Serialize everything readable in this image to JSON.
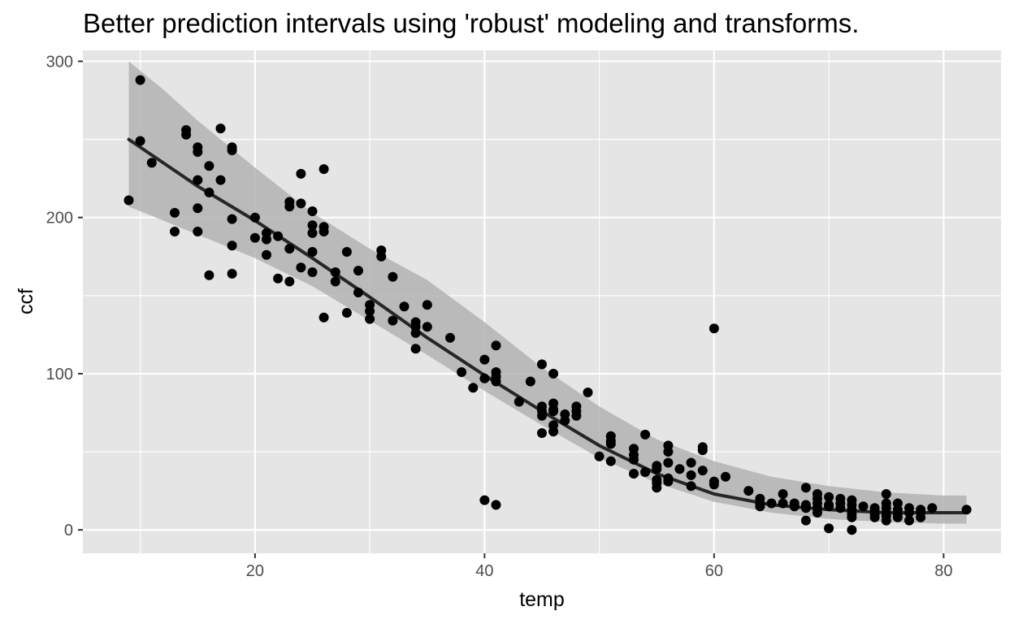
{
  "chart_data": {
    "type": "scatter",
    "title": "Better prediction intervals using 'robust' modeling and transforms.",
    "xlabel": "temp",
    "ylabel": "ccf",
    "xlim": [
      5,
      85
    ],
    "ylim": [
      -15,
      307
    ],
    "x_ticks": [
      20,
      40,
      60,
      80
    ],
    "x_tick_labels": [
      "20",
      "40",
      "60",
      "80"
    ],
    "y_ticks": [
      0,
      100,
      200,
      300
    ],
    "y_tick_labels": [
      "0",
      "100",
      "200",
      "300"
    ],
    "grid": true,
    "legend": "none",
    "colors": {
      "panel_background": "#e5e5e5",
      "grid": "#ffffff",
      "points": "#000000",
      "fit_line": "#262626",
      "interval_band": "#b3b3b3"
    },
    "series": [
      {
        "type": "scatter",
        "points": [
          [
            9,
            211
          ],
          [
            10,
            288
          ],
          [
            10,
            249
          ],
          [
            11,
            235
          ],
          [
            13,
            203
          ],
          [
            13,
            191
          ],
          [
            14,
            256
          ],
          [
            14,
            253
          ],
          [
            15,
            245
          ],
          [
            15,
            242
          ],
          [
            15,
            224
          ],
          [
            15,
            206
          ],
          [
            15,
            191
          ],
          [
            16,
            233
          ],
          [
            16,
            216
          ],
          [
            16,
            163
          ],
          [
            17,
            257
          ],
          [
            17,
            224
          ],
          [
            18,
            245
          ],
          [
            18,
            243
          ],
          [
            18,
            199
          ],
          [
            18,
            182
          ],
          [
            18,
            164
          ],
          [
            20,
            200
          ],
          [
            20,
            187
          ],
          [
            21,
            190
          ],
          [
            21,
            186
          ],
          [
            21,
            176
          ],
          [
            22,
            188
          ],
          [
            22,
            161
          ],
          [
            23,
            210
          ],
          [
            23,
            207
          ],
          [
            23,
            180
          ],
          [
            23,
            159
          ],
          [
            24,
            228
          ],
          [
            24,
            209
          ],
          [
            24,
            168
          ],
          [
            25,
            204
          ],
          [
            25,
            195
          ],
          [
            25,
            190
          ],
          [
            25,
            178
          ],
          [
            25,
            165
          ],
          [
            26,
            231
          ],
          [
            26,
            194
          ],
          [
            26,
            191
          ],
          [
            26,
            136
          ],
          [
            27,
            165
          ],
          [
            27,
            159
          ],
          [
            28,
            178
          ],
          [
            28,
            139
          ],
          [
            29,
            166
          ],
          [
            29,
            152
          ],
          [
            30,
            144
          ],
          [
            30,
            140
          ],
          [
            30,
            135
          ],
          [
            31,
            179
          ],
          [
            31,
            175
          ],
          [
            32,
            162
          ],
          [
            32,
            134
          ],
          [
            33,
            143
          ],
          [
            34,
            133
          ],
          [
            34,
            130
          ],
          [
            34,
            126
          ],
          [
            34,
            116
          ],
          [
            35,
            144
          ],
          [
            35,
            130
          ],
          [
            37,
            123
          ],
          [
            38,
            101
          ],
          [
            39,
            91
          ],
          [
            40,
            109
          ],
          [
            40,
            97
          ],
          [
            40,
            19
          ],
          [
            41,
            118
          ],
          [
            41,
            101
          ],
          [
            41,
            98
          ],
          [
            41,
            95
          ],
          [
            41,
            16
          ],
          [
            43,
            82
          ],
          [
            44,
            95
          ],
          [
            45,
            106
          ],
          [
            45,
            79
          ],
          [
            45,
            76
          ],
          [
            45,
            73
          ],
          [
            45,
            62
          ],
          [
            46,
            100
          ],
          [
            46,
            81
          ],
          [
            46,
            77
          ],
          [
            46,
            76
          ],
          [
            46,
            67
          ],
          [
            46,
            63
          ],
          [
            47,
            74
          ],
          [
            47,
            70
          ],
          [
            48,
            79
          ],
          [
            48,
            76
          ],
          [
            48,
            73
          ],
          [
            49,
            88
          ],
          [
            50,
            47
          ],
          [
            51,
            60
          ],
          [
            51,
            57
          ],
          [
            51,
            55
          ],
          [
            51,
            44
          ],
          [
            53,
            52
          ],
          [
            53,
            48
          ],
          [
            53,
            45
          ],
          [
            53,
            36
          ],
          [
            54,
            61
          ],
          [
            54,
            37
          ],
          [
            55,
            41
          ],
          [
            55,
            39
          ],
          [
            55,
            32
          ],
          [
            55,
            30
          ],
          [
            55,
            27
          ],
          [
            56,
            54
          ],
          [
            56,
            50
          ],
          [
            56,
            43
          ],
          [
            56,
            33
          ],
          [
            56,
            31
          ],
          [
            57,
            39
          ],
          [
            58,
            43
          ],
          [
            58,
            35
          ],
          [
            58,
            28
          ],
          [
            59,
            53
          ],
          [
            59,
            51
          ],
          [
            59,
            38
          ],
          [
            60,
            129
          ],
          [
            60,
            31
          ],
          [
            60,
            29
          ],
          [
            61,
            34
          ],
          [
            63,
            25
          ],
          [
            64,
            20
          ],
          [
            64,
            17
          ],
          [
            64,
            15
          ],
          [
            65,
            17
          ],
          [
            66,
            23
          ],
          [
            66,
            17
          ],
          [
            67,
            17
          ],
          [
            67,
            15
          ],
          [
            68,
            27
          ],
          [
            68,
            16
          ],
          [
            68,
            14
          ],
          [
            68,
            6
          ],
          [
            69,
            23
          ],
          [
            69,
            20
          ],
          [
            69,
            17
          ],
          [
            69,
            14
          ],
          [
            69,
            11
          ],
          [
            70,
            21
          ],
          [
            70,
            16
          ],
          [
            70,
            15
          ],
          [
            70,
            1
          ],
          [
            71,
            20
          ],
          [
            71,
            17
          ],
          [
            71,
            14
          ],
          [
            72,
            19
          ],
          [
            72,
            16
          ],
          [
            72,
            13
          ],
          [
            72,
            10
          ],
          [
            72,
            8
          ],
          [
            72,
            0
          ],
          [
            73,
            15
          ],
          [
            74,
            14
          ],
          [
            74,
            12
          ],
          [
            74,
            10
          ],
          [
            74,
            8
          ],
          [
            75,
            23
          ],
          [
            75,
            17
          ],
          [
            75,
            14
          ],
          [
            75,
            11
          ],
          [
            75,
            9
          ],
          [
            75,
            6
          ],
          [
            76,
            17
          ],
          [
            76,
            13
          ],
          [
            76,
            10
          ],
          [
            76,
            8
          ],
          [
            77,
            14
          ],
          [
            77,
            11
          ],
          [
            77,
            6
          ],
          [
            78,
            13
          ],
          [
            78,
            11
          ],
          [
            78,
            8
          ],
          [
            79,
            14
          ],
          [
            82,
            13
          ]
        ]
      },
      {
        "type": "line",
        "x": [
          9,
          12,
          15,
          20,
          25,
          30,
          35,
          40,
          45,
          50,
          55,
          60,
          65,
          70,
          75,
          80,
          82
        ],
        "y": [
          250,
          235,
          220,
          198,
          174,
          149,
          123,
          99,
          76,
          54,
          36,
          23,
          16,
          13,
          11,
          11,
          11
        ]
      },
      {
        "type": "area",
        "x": [
          9,
          12,
          15,
          20,
          25,
          30,
          35,
          40,
          45,
          50,
          55,
          60,
          65,
          70,
          75,
          80,
          82
        ],
        "lower": [
          207,
          198,
          189,
          174,
          156,
          134,
          112,
          89,
          67,
          46,
          30,
          18,
          11,
          7,
          5,
          4,
          4
        ],
        "upper": [
          300,
          282,
          262,
          232,
          203,
          180,
          160,
          133,
          104,
          79,
          58,
          44,
          34,
          28,
          24,
          22,
          22
        ]
      }
    ]
  }
}
